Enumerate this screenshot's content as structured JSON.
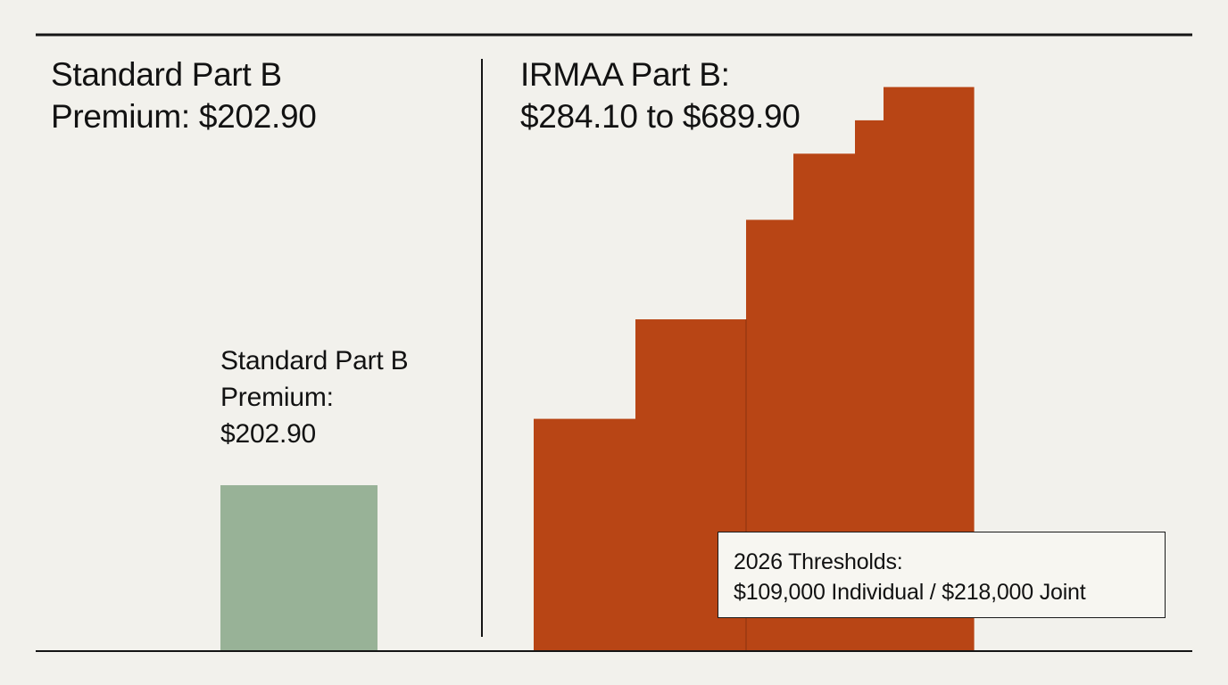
{
  "panels": {
    "left": {
      "heading_line1": "Standard Part B",
      "heading_line2": "Premium: $202.90"
    },
    "right": {
      "heading_line1": "IRMAA Part B:",
      "heading_line2": "$284.10 to $689.90"
    }
  },
  "bar_label": {
    "line1": "Standard Part B",
    "line2": "Premium:",
    "line3": "$202.90"
  },
  "threshold_box": {
    "line1": "2026 Thresholds:",
    "line2": "$109,000 Individual / $218,000 Joint"
  },
  "colors": {
    "standard_bar": "#98b297",
    "irmaa_bars": "#b84515",
    "rules": "#151515",
    "background": "#f2f1ec"
  },
  "chart_data": {
    "type": "bar",
    "title": "",
    "xlabel": "",
    "ylabel": "",
    "ylim": [
      0,
      720
    ],
    "grid": false,
    "legend": "none",
    "series": [
      {
        "group": "standard",
        "values": [
          202.9
        ]
      },
      {
        "group": "irmaa",
        "values": [
          284.1,
          405.8,
          527.5,
          608.4,
          649.2,
          689.9
        ]
      }
    ]
  }
}
